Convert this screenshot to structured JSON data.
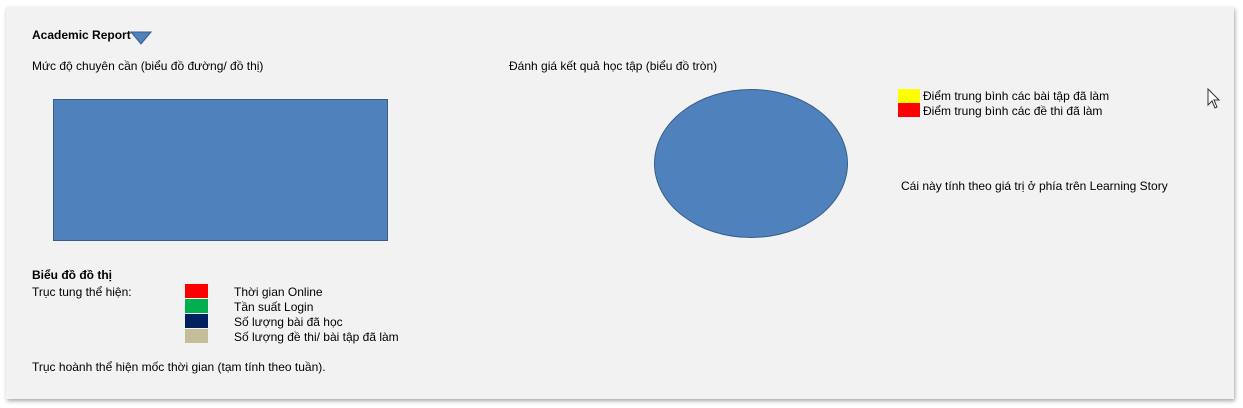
{
  "report": {
    "title": "Academic Report",
    "attendance_title": "Mức độ chuyên cần (biểu đồ đường/ đồ thị)",
    "results_title": "Đánh giá kết quả học tập (biểu đồ tròn)",
    "pie_legend": [
      {
        "label": "Điểm trung bình các bài tập đã làm",
        "color": "#ffff00"
      },
      {
        "label": "Điểm trung bình các đề thi đã làm",
        "color": "#ff0000"
      }
    ],
    "pie_note": "Cái này tính theo giá trị ở phía trên Learning Story",
    "line_section_title": "Biểu đồ đồ thị",
    "y_axis_label": "Trục tung thể hiện:",
    "line_legend": [
      {
        "label": "Thời gian Online",
        "color": "#ff0000"
      },
      {
        "label": "Tần suất Login",
        "color": "#00b050"
      },
      {
        "label": "Số lượng bài đã học",
        "color": "#002060"
      },
      {
        "label": "Số lượng đề thi/ bài tập đã làm",
        "color": "#c4bd97"
      }
    ],
    "x_axis_note": "Trục hoành thể hiện mốc thời gian (tạm tính theo tuần)."
  }
}
